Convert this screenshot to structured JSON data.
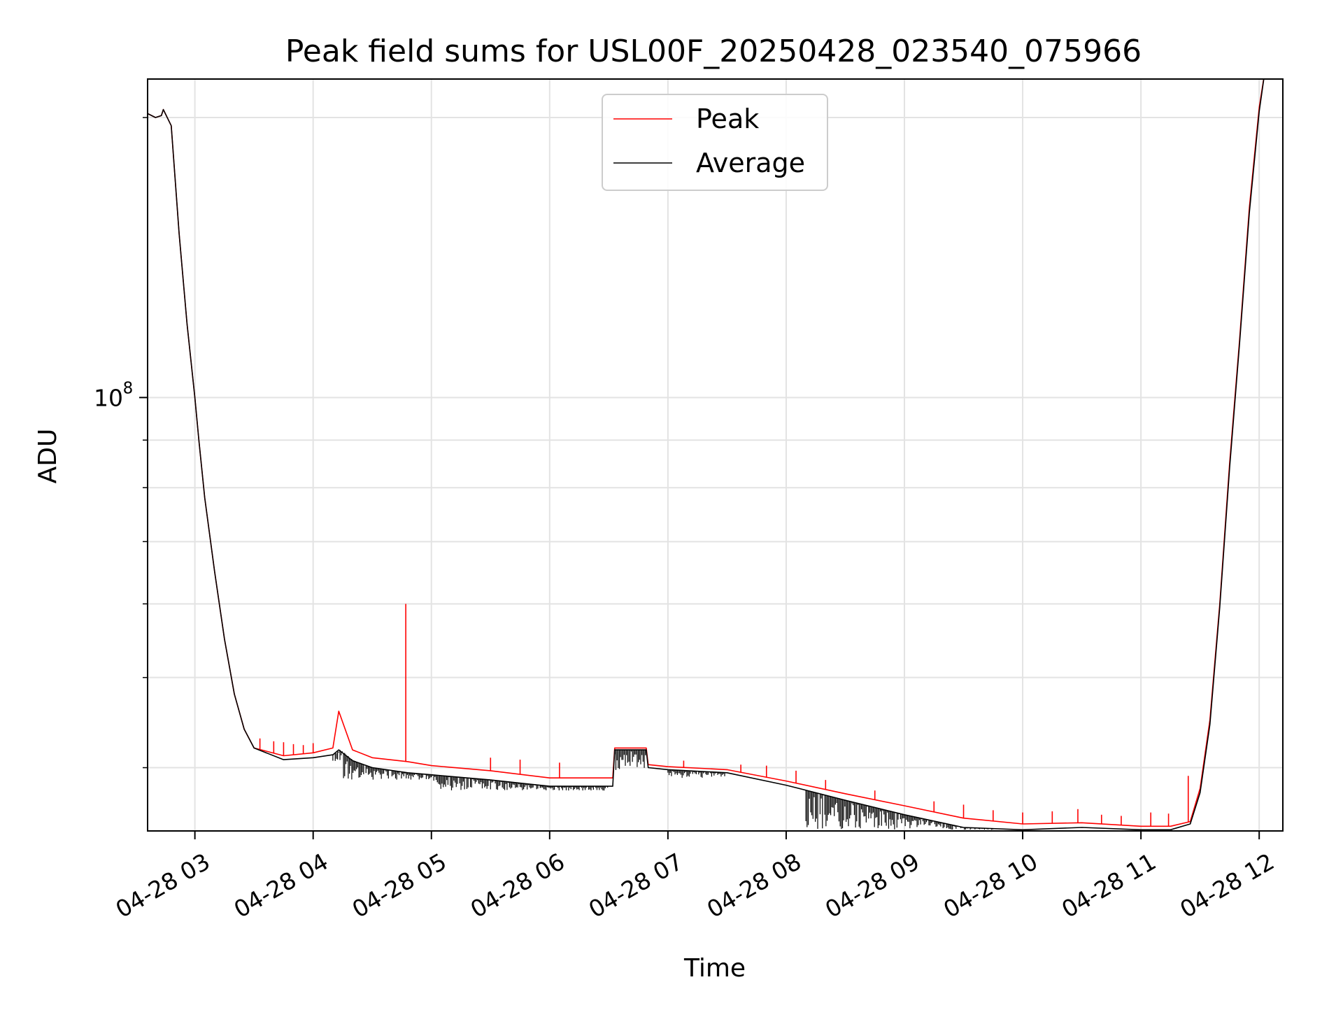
{
  "chart_data": {
    "type": "line",
    "title": "Peak field sums for USL00F_20250428_023540_075966",
    "xlabel": "Time",
    "ylabel": "ADU",
    "x_axis": "date",
    "y_scale": "log",
    "grid": true,
    "legend_position": "top-center",
    "xlim": [
      "04-28 02:36",
      "04-28 12:12"
    ],
    "ylim": [
      34200000,
      220000000
    ],
    "x_ticks": [
      {
        "at": "04-28 03:00",
        "label": "04-28 03"
      },
      {
        "at": "04-28 04:00",
        "label": "04-28 04"
      },
      {
        "at": "04-28 05:00",
        "label": "04-28 05"
      },
      {
        "at": "04-28 06:00",
        "label": "04-28 06"
      },
      {
        "at": "04-28 07:00",
        "label": "04-28 07"
      },
      {
        "at": "04-28 08:00",
        "label": "04-28 08"
      },
      {
        "at": "04-28 09:00",
        "label": "04-28 09"
      },
      {
        "at": "04-28 10:00",
        "label": "04-28 10"
      },
      {
        "at": "04-28 11:00",
        "label": "04-28 11"
      },
      {
        "at": "04-28 12:00",
        "label": "04-28 12"
      }
    ],
    "y_major_ticks": [
      {
        "value": 100000000,
        "label_base": "10",
        "label_exp": "8"
      }
    ],
    "y_minor_ticks": [
      40000000,
      50000000,
      60000000,
      70000000,
      80000000,
      90000000,
      200000000
    ],
    "series": [
      {
        "name": "Peak",
        "color": "#ff0000",
        "x": [
          "04-28 02:36",
          "04-28 02:40",
          "04-28 02:43",
          "04-28 02:44",
          "04-28 02:48",
          "04-28 02:52",
          "04-28 02:56",
          "04-28 03:00",
          "04-28 03:02",
          "04-28 03:05",
          "04-28 03:10",
          "04-28 03:15",
          "04-28 03:20",
          "04-28 03:25",
          "04-28 03:30",
          "04-28 03:45",
          "04-28 04:00",
          "04-28 04:10",
          "04-28 04:13",
          "04-28 04:20",
          "04-28 04:30",
          "04-28 04:48",
          "04-28 05:00",
          "04-28 05:30",
          "04-28 06:00",
          "04-28 06:32",
          "04-28 06:33",
          "04-28 06:49",
          "04-28 06:50",
          "04-28 07:00",
          "04-28 07:30",
          "04-28 08:00",
          "04-28 08:30",
          "04-28 09:00",
          "04-28 09:30",
          "04-28 10:00",
          "04-28 10:30",
          "04-28 11:00",
          "04-28 11:15",
          "04-28 11:25",
          "04-28 11:30",
          "04-28 11:35",
          "04-28 11:40",
          "04-28 11:45",
          "04-28 11:50",
          "04-28 11:55",
          "04-28 12:00",
          "04-28 12:03"
        ],
        "y": [
          202000000,
          200000000,
          201000000,
          204000000,
          196000000,
          150000000,
          120000000,
          100000000,
          90000000,
          78000000,
          65000000,
          55000000,
          48000000,
          44000000,
          42000000,
          41200000,
          41500000,
          42000000,
          46000000,
          41800000,
          41000000,
          40600000,
          40200000,
          39700000,
          39000000,
          39000000,
          42000000,
          42000000,
          40300000,
          40100000,
          39800000,
          38700000,
          37500000,
          36400000,
          35300000,
          34800000,
          34900000,
          34600000,
          34600000,
          35000000,
          38000000,
          45000000,
          60000000,
          85000000,
          115000000,
          160000000,
          205000000,
          225000000
        ],
        "spikes": [
          {
            "x": "04-28 03:33",
            "y": 43000000
          },
          {
            "x": "04-28 03:40",
            "y": 42700000
          },
          {
            "x": "04-28 03:45",
            "y": 42600000
          },
          {
            "x": "04-28 03:50",
            "y": 42400000
          },
          {
            "x": "04-28 03:55",
            "y": 42300000
          },
          {
            "x": "04-28 04:00",
            "y": 42500000
          },
          {
            "x": "04-28 04:13",
            "y": 46000000
          },
          {
            "x": "04-28 04:47",
            "y": 60000000
          },
          {
            "x": "04-28 05:30",
            "y": 41000000
          },
          {
            "x": "04-28 05:45",
            "y": 40800000
          },
          {
            "x": "04-28 06:05",
            "y": 40500000
          },
          {
            "x": "04-28 07:08",
            "y": 40700000
          },
          {
            "x": "04-28 07:37",
            "y": 40300000
          },
          {
            "x": "04-28 07:50",
            "y": 40200000
          },
          {
            "x": "04-28 08:05",
            "y": 39700000
          },
          {
            "x": "04-28 08:20",
            "y": 38800000
          },
          {
            "x": "04-28 08:45",
            "y": 37800000
          },
          {
            "x": "04-28 09:15",
            "y": 36800000
          },
          {
            "x": "04-28 09:30",
            "y": 36500000
          },
          {
            "x": "04-28 09:45",
            "y": 36000000
          },
          {
            "x": "04-28 10:00",
            "y": 35800000
          },
          {
            "x": "04-28 10:15",
            "y": 35900000
          },
          {
            "x": "04-28 10:28",
            "y": 36100000
          },
          {
            "x": "04-28 10:40",
            "y": 35600000
          },
          {
            "x": "04-28 10:50",
            "y": 35500000
          },
          {
            "x": "04-28 11:05",
            "y": 35800000
          },
          {
            "x": "04-28 11:14",
            "y": 35700000
          },
          {
            "x": "04-28 11:24",
            "y": 39200000
          }
        ]
      },
      {
        "name": "Average",
        "color": "#000000",
        "x": [
          "04-28 02:36",
          "04-28 02:40",
          "04-28 02:43",
          "04-28 02:44",
          "04-28 02:48",
          "04-28 02:52",
          "04-28 02:56",
          "04-28 03:00",
          "04-28 03:02",
          "04-28 03:05",
          "04-28 03:10",
          "04-28 03:15",
          "04-28 03:20",
          "04-28 03:25",
          "04-28 03:30",
          "04-28 03:45",
          "04-28 04:00",
          "04-28 04:10",
          "04-28 04:13",
          "04-28 04:20",
          "04-28 04:30",
          "04-28 04:48",
          "04-28 05:00",
          "04-28 05:30",
          "04-28 06:00",
          "04-28 06:32",
          "04-28 06:33",
          "04-28 06:49",
          "04-28 06:50",
          "04-28 07:00",
          "04-28 07:30",
          "04-28 08:00",
          "04-28 08:30",
          "04-28 09:00",
          "04-28 09:30",
          "04-28 10:00",
          "04-28 10:30",
          "04-28 11:00",
          "04-28 11:15",
          "04-28 11:25",
          "04-28 11:30",
          "04-28 11:35",
          "04-28 11:40",
          "04-28 11:45",
          "04-28 11:50",
          "04-28 11:55",
          "04-28 12:00",
          "04-28 12:03"
        ],
        "y": [
          202000000,
          200000000,
          201000000,
          204000000,
          196000000,
          150000000,
          120000000,
          100000000,
          90000000,
          78000000,
          65000000,
          55000000,
          48000000,
          44000000,
          42000000,
          40800000,
          41000000,
          41300000,
          41800000,
          40700000,
          40000000,
          39500000,
          39300000,
          38800000,
          38200000,
          38200000,
          41800000,
          41800000,
          40000000,
          39800000,
          39500000,
          38300000,
          36900000,
          35600000,
          34500000,
          34300000,
          34500000,
          34300000,
          34300000,
          34800000,
          37600000,
          44500000,
          59500000,
          84000000,
          114000000,
          158000000,
          203000000,
          225000000
        ],
        "noise_band": [
          {
            "from": "04-28 04:10",
            "to": "04-28 05:00",
            "low": 38800000
          },
          {
            "from": "04-28 05:00",
            "to": "04-28 06:30",
            "low": 37800000
          },
          {
            "from": "04-28 06:33",
            "to": "04-28 06:49",
            "low": 39700000
          },
          {
            "from": "04-28 07:00",
            "to": "04-28 07:30",
            "low": 39000000
          },
          {
            "from": "04-28 08:10",
            "to": "04-28 09:45",
            "low": 34300000
          }
        ]
      }
    ]
  }
}
